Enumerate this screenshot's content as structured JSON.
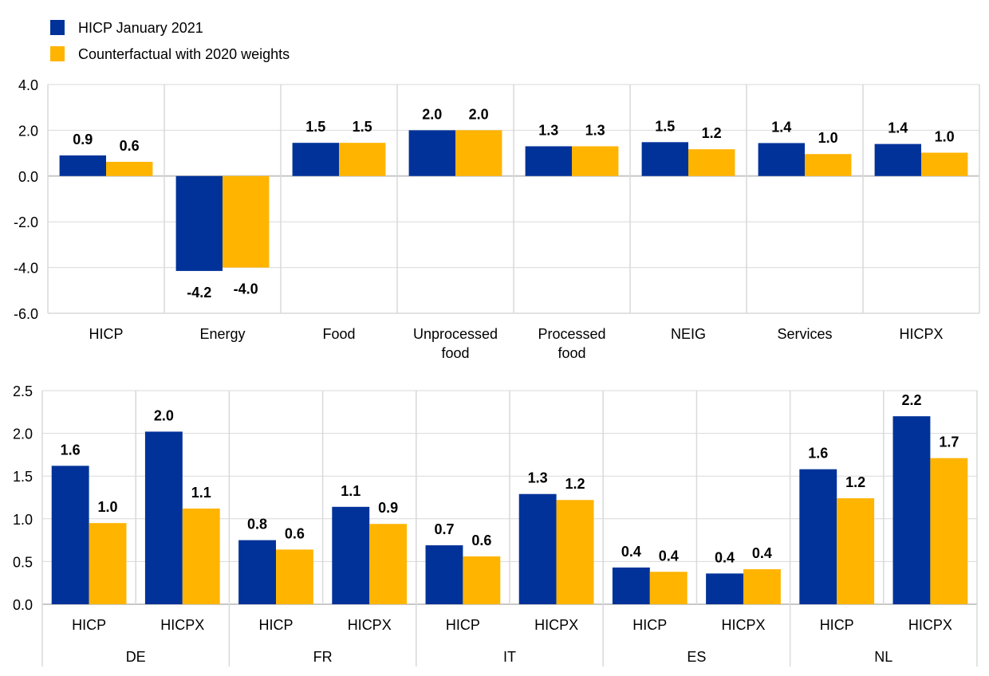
{
  "legend": [
    {
      "name": "HICP January 2021",
      "color": "#003299"
    },
    {
      "name": "Counterfactual with 2020 weights",
      "color": "#FFB400"
    }
  ],
  "chart_data": [
    {
      "type": "bar",
      "ylim": [
        -6,
        4
      ],
      "yticks": [
        "4.0",
        "2.0",
        "0.0",
        "-2.0",
        "-4.0",
        "-6.0"
      ],
      "ytick_values": [
        4,
        2,
        0,
        -2,
        -4,
        -6
      ],
      "grid": true,
      "legend_placement": "top-left",
      "categories": [
        "HICP",
        "Energy",
        "Food",
        "Unprocessed food",
        "Processed food",
        "NEIG",
        "Services",
        "HICPX"
      ],
      "series": [
        {
          "name": "HICP January 2021",
          "values": [
            0.9,
            -4.15,
            1.45,
            2.0,
            1.3,
            1.48,
            1.44,
            1.4
          ],
          "labels": [
            "0.9",
            "-4.2",
            "1.5",
            "2.0",
            "1.3",
            "1.5",
            "1.4",
            "1.4"
          ]
        },
        {
          "name": "Counterfactual with 2020 weights",
          "values": [
            0.62,
            -4.0,
            1.45,
            2.0,
            1.3,
            1.17,
            0.96,
            1.02
          ],
          "labels": [
            "0.6",
            "-4.0",
            "1.5",
            "2.0",
            "1.3",
            "1.2",
            "1.0",
            "1.0"
          ]
        }
      ]
    },
    {
      "type": "bar",
      "ylim": [
        0,
        2.5
      ],
      "yticks": [
        "2.5",
        "2.0",
        "1.5",
        "1.0",
        "0.5",
        "0.0"
      ],
      "ytick_values": [
        2.5,
        2.0,
        1.5,
        1.0,
        0.5,
        0.0
      ],
      "grid": true,
      "categories": [
        "HICP",
        "HICPX",
        "HICP",
        "HICPX",
        "HICP",
        "HICPX",
        "HICP",
        "HICPX",
        "HICP",
        "HICPX"
      ],
      "groups": [
        "DE",
        "FR",
        "IT",
        "ES",
        "NL"
      ],
      "series": [
        {
          "name": "HICP January 2021",
          "values": [
            1.62,
            2.02,
            0.75,
            1.14,
            0.69,
            1.29,
            0.43,
            0.36,
            1.58,
            2.2
          ],
          "labels": [
            "1.6",
            "2.0",
            "0.8",
            "1.1",
            "0.7",
            "1.3",
            "0.4",
            "0.4",
            "1.6",
            "2.2"
          ]
        },
        {
          "name": "Counterfactual with 2020 weights",
          "values": [
            0.95,
            1.12,
            0.64,
            0.94,
            0.56,
            1.22,
            0.38,
            0.41,
            1.24,
            1.71
          ],
          "labels": [
            "1.0",
            "1.1",
            "0.6",
            "0.9",
            "0.6",
            "1.2",
            "0.4",
            "0.4",
            "1.2",
            "1.7"
          ]
        }
      ]
    }
  ]
}
